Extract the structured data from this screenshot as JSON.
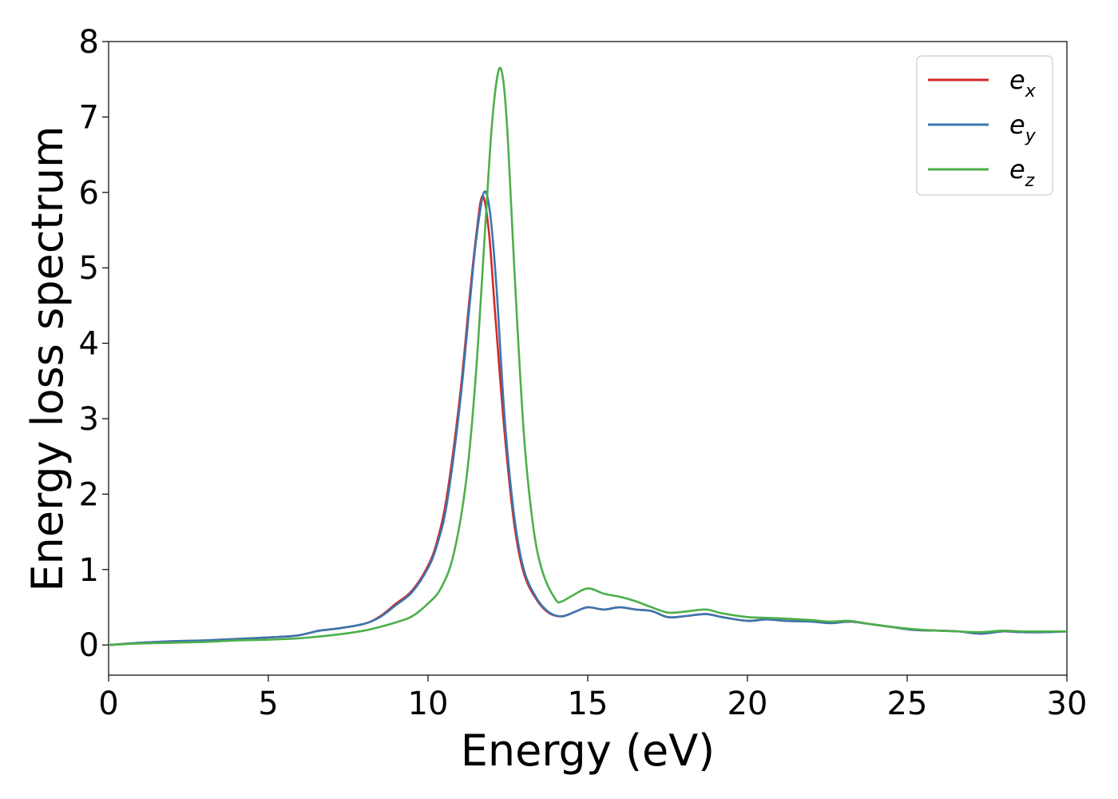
{
  "chart_data": {
    "type": "line",
    "xlabel": "Energy (eV)",
    "ylabel": "Energy loss spectrum",
    "xlim": [
      0,
      30
    ],
    "ylim": [
      -0.4,
      8
    ],
    "xticks": [
      0,
      5,
      10,
      15,
      20,
      25,
      30
    ],
    "yticks": [
      0,
      1,
      2,
      3,
      4,
      5,
      6,
      7,
      8
    ],
    "grid": false,
    "legend_position": "top-right",
    "series": [
      {
        "name": "e",
        "subscript": "x",
        "color": "#d62728",
        "x": [
          0,
          1,
          2,
          3,
          4,
          5,
          5.8,
          6.2,
          6.6,
          7.2,
          8,
          8.5,
          9,
          9.5,
          10,
          10.3,
          10.6,
          11,
          11.3,
          11.5,
          11.7,
          11.9,
          12.1,
          12.4,
          12.7,
          13,
          13.4,
          13.8,
          14.2,
          14.6,
          15,
          15.5,
          16,
          16.5,
          17,
          17.5,
          18,
          18.7,
          19.2,
          20,
          20.6,
          21.2,
          22,
          22.6,
          23.2,
          23.8,
          24.5,
          25.2,
          26,
          26.6,
          27.3,
          28,
          28.6,
          29.3,
          30
        ],
        "values": [
          0,
          0.03,
          0.05,
          0.06,
          0.08,
          0.1,
          0.12,
          0.15,
          0.19,
          0.22,
          0.28,
          0.38,
          0.55,
          0.72,
          1.05,
          1.4,
          2.0,
          3.3,
          4.6,
          5.4,
          5.95,
          5.5,
          4.4,
          2.8,
          1.6,
          0.95,
          0.6,
          0.42,
          0.38,
          0.44,
          0.5,
          0.47,
          0.5,
          0.47,
          0.45,
          0.37,
          0.38,
          0.41,
          0.37,
          0.32,
          0.34,
          0.32,
          0.31,
          0.29,
          0.31,
          0.28,
          0.24,
          0.2,
          0.19,
          0.18,
          0.15,
          0.18,
          0.17,
          0.17,
          0.18
        ]
      },
      {
        "name": "e",
        "subscript": "y",
        "color": "#3a76af",
        "x": [
          0,
          1,
          2,
          3,
          4,
          5,
          5.8,
          6.2,
          6.6,
          7.2,
          8,
          8.5,
          9,
          9.5,
          10,
          10.3,
          10.6,
          11,
          11.3,
          11.5,
          11.75,
          11.95,
          12.15,
          12.4,
          12.7,
          13,
          13.4,
          13.8,
          14.2,
          14.6,
          15,
          15.5,
          16,
          16.5,
          17,
          17.5,
          18,
          18.7,
          19.2,
          20,
          20.6,
          21.2,
          22,
          22.6,
          23.2,
          23.8,
          24.5,
          25.2,
          26,
          26.6,
          27.3,
          28,
          28.6,
          29.3,
          30
        ],
        "values": [
          0,
          0.03,
          0.05,
          0.06,
          0.08,
          0.1,
          0.12,
          0.15,
          0.19,
          0.22,
          0.28,
          0.37,
          0.53,
          0.7,
          1.02,
          1.35,
          1.9,
          3.2,
          4.5,
          5.35,
          6.0,
          5.7,
          4.7,
          3.0,
          1.7,
          1.0,
          0.62,
          0.43,
          0.38,
          0.44,
          0.5,
          0.47,
          0.5,
          0.47,
          0.45,
          0.37,
          0.38,
          0.41,
          0.37,
          0.32,
          0.34,
          0.32,
          0.31,
          0.29,
          0.31,
          0.28,
          0.24,
          0.2,
          0.19,
          0.18,
          0.15,
          0.18,
          0.17,
          0.17,
          0.18
        ]
      },
      {
        "name": "e",
        "subscript": "z",
        "color": "#4daf4a",
        "x": [
          0,
          1,
          2,
          3,
          4,
          5,
          6,
          7,
          8,
          8.5,
          9,
          9.5,
          10,
          10.4,
          10.8,
          11.2,
          11.5,
          11.8,
          12,
          12.2,
          12.35,
          12.5,
          12.7,
          13,
          13.3,
          13.6,
          14,
          14.2,
          14.5,
          15,
          15.5,
          16,
          16.5,
          17,
          17.5,
          18,
          18.7,
          19.2,
          20,
          20.6,
          21.2,
          22,
          22.6,
          23.2,
          23.8,
          24.5,
          25.2,
          26,
          26.6,
          27.3,
          28,
          28.6,
          29.3,
          30
        ],
        "values": [
          0,
          0.02,
          0.03,
          0.04,
          0.06,
          0.07,
          0.09,
          0.13,
          0.19,
          0.24,
          0.3,
          0.38,
          0.55,
          0.75,
          1.2,
          2.2,
          3.6,
          5.6,
          6.9,
          7.6,
          7.5,
          6.7,
          5.0,
          2.8,
          1.55,
          0.95,
          0.6,
          0.58,
          0.65,
          0.75,
          0.68,
          0.64,
          0.58,
          0.5,
          0.43,
          0.44,
          0.47,
          0.42,
          0.37,
          0.36,
          0.35,
          0.33,
          0.31,
          0.32,
          0.28,
          0.24,
          0.21,
          0.19,
          0.18,
          0.17,
          0.19,
          0.18,
          0.18,
          0.18
        ]
      }
    ]
  }
}
